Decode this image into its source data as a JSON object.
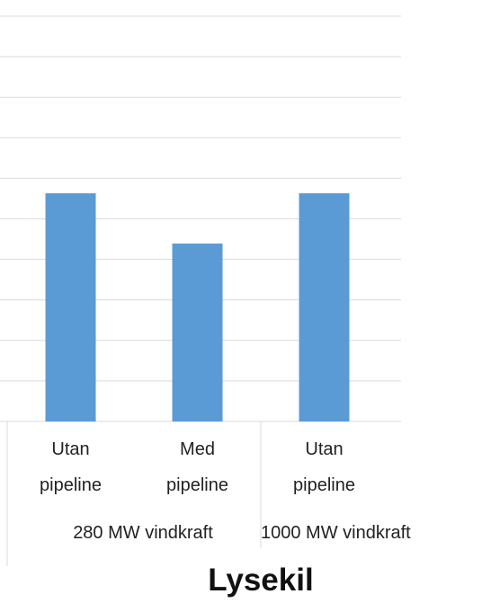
{
  "chart_data": {
    "type": "bar",
    "groups": [
      {
        "name": "280 MW vindkraft",
        "categories": [
          "Utan pipeline",
          "Med pipeline"
        ],
        "values": [
          5.63,
          4.39
        ]
      },
      {
        "name": "1000 MW vindkraft",
        "categories": [
          "Utan pipeline"
        ],
        "values": [
          5.63
        ]
      }
    ],
    "x_label": "Lysekil",
    "color": "#5b9bd5",
    "ylim": [
      0,
      10
    ],
    "yticks": [
      0,
      1,
      2,
      3,
      4,
      5,
      6,
      7,
      8,
      9,
      10
    ],
    "grid": true
  }
}
